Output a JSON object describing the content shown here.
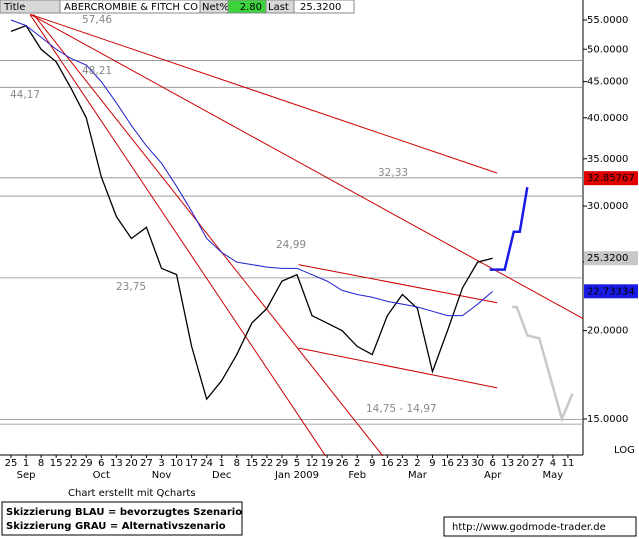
{
  "header": {
    "title_label": "Title",
    "symbol": "ABERCROMBIE & FITCH CO",
    "net_label": "Net%",
    "net_value": "2.80",
    "last_label": "Last",
    "last_value": "25.3200"
  },
  "chart_data": {
    "type": "line",
    "log_scale": true,
    "categories": [
      "25",
      "1",
      "8",
      "15",
      "22",
      "29",
      "6",
      "13",
      "20",
      "27",
      "3",
      "10",
      "17",
      "24",
      "1",
      "8",
      "15",
      "22",
      "29",
      "5",
      "12",
      "19",
      "26",
      "2",
      "9",
      "16",
      "23",
      "2",
      "9",
      "16",
      "23",
      "30",
      "6",
      "13",
      "20",
      "27",
      "4",
      "11"
    ],
    "months": [
      null,
      "Sep",
      null,
      null,
      null,
      null,
      "Oct",
      null,
      null,
      null,
      "Nov",
      null,
      null,
      null,
      "Dec",
      null,
      null,
      null,
      null,
      "Jan 2009",
      null,
      null,
      null,
      "Feb",
      null,
      null,
      null,
      "Mar",
      null,
      null,
      null,
      null,
      "Apr",
      null,
      null,
      null,
      "May",
      null
    ],
    "xlim": [
      -0.73,
      38.0
    ],
    "ylim": [
      13.34,
      58.7
    ],
    "yticks": [
      {
        "value": 15,
        "label": "15.0000"
      },
      {
        "value": 20,
        "label": "20.0000"
      },
      {
        "value": 25,
        "label": "25.0000"
      },
      {
        "value": 30,
        "label": "30.0000"
      },
      {
        "value": 35,
        "label": "35.0000"
      },
      {
        "value": 40,
        "label": "40.0000"
      },
      {
        "value": 45,
        "label": "45.0000"
      },
      {
        "value": 50,
        "label": "50.0000"
      },
      {
        "value": 55,
        "label": "55.0000"
      }
    ],
    "series": [
      {
        "name": "Kurs",
        "color": "#000000",
        "values": [
          53,
          54,
          50,
          48,
          44,
          40,
          33,
          29,
          27,
          28,
          24.5,
          24,
          19,
          16,
          17,
          18.5,
          20.5,
          21.5,
          23.5,
          24,
          21,
          20.5,
          20,
          19,
          18.5,
          21,
          22.5,
          21.5,
          17.5,
          20,
          23,
          25,
          25.32,
          null,
          null,
          null,
          null,
          null
        ]
      },
      {
        "name": "Durchschnitt",
        "color": "#1f1fd0",
        "values": [
          55,
          54,
          52,
          50,
          48.5,
          47.5,
          45,
          42,
          39,
          36.5,
          34.5,
          32,
          29.5,
          27,
          25.8,
          25,
          24.8,
          24.6,
          24.5,
          24.5,
          24,
          23.5,
          22.8,
          22.5,
          22.3,
          22,
          21.8,
          21.6,
          21.3,
          21,
          21,
          21.8,
          22.73,
          null,
          null,
          null,
          null,
          null
        ]
      }
    ],
    "levels": [
      48.21,
      44.17,
      32.9,
      31.0,
      23.75,
      14.97,
      14.75
    ],
    "trend_lines": [
      {
        "color": "#cc0000",
        "x": [
          1.26,
          20.9
        ],
        "y": [
          56,
          13.3
        ]
      },
      {
        "color": "#cc0000",
        "x": [
          1.5,
          24.7
        ],
        "y": [
          56,
          13.3
        ]
      },
      {
        "color": "#cc0000",
        "x": [
          1.3,
          38.0
        ],
        "y": [
          56,
          20.8
        ]
      },
      {
        "color": "#cc0000",
        "x": [
          1.3,
          32.3
        ],
        "y": [
          56,
          33.4
        ]
      },
      {
        "color": "#cc0000",
        "x": [
          19.1,
          32.3
        ],
        "y": [
          24.8,
          21.9
        ]
      },
      {
        "color": "#cc0000",
        "x": [
          19.1,
          32.3
        ],
        "y": [
          18.9,
          16.6
        ]
      },
      {
        "color": "#1a1ae6",
        "x": [
          31.8,
          32.8,
          33.4,
          33.8,
          34.3
        ],
        "y": [
          24.4,
          24.4,
          27.6,
          27.6,
          31.9
        ]
      },
      {
        "color": "#c8c8c8",
        "x": [
          33.3,
          33.6,
          34.3,
          35.1,
          36.6,
          37.3
        ],
        "y": [
          21.6,
          21.6,
          19.7,
          19.5,
          15.0,
          16.3
        ]
      }
    ],
    "price_labels": [
      {
        "value": 32.85767,
        "label": "32.85767",
        "color": "#e00000"
      },
      {
        "value": 25.32,
        "label": "25.3200",
        "color": "#c8c8c8"
      },
      {
        "value": 22.73334,
        "label": "22.73334",
        "color": "#1a1ae6"
      }
    ],
    "annotations": [
      "57,46",
      "48,21",
      "44,17",
      "32,33",
      "24,99",
      "23,75",
      "14,75 - 14,97"
    ],
    "scale_note": "LOG",
    "credit": "Chart erstellt mit Qcharts"
  },
  "footer": {
    "legend_blue": "Skizzierung BLAU = bevorzugtes Szenario",
    "legend_grey": "Skizzierung GRAU = Alternativszenario",
    "url": "http://www.godmode-trader.de"
  }
}
